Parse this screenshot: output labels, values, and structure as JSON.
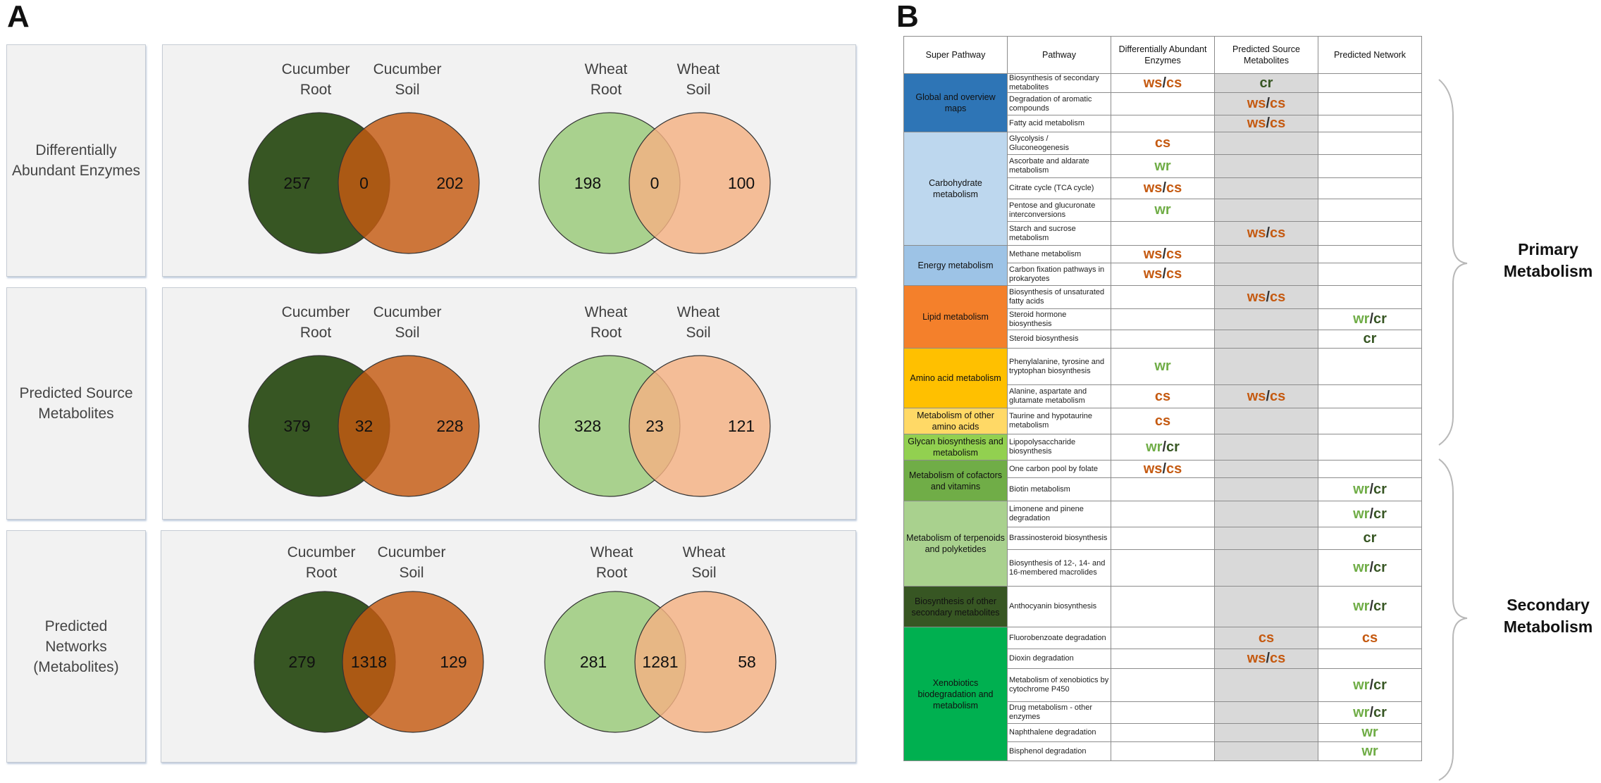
{
  "panel_a": {
    "letter": "A",
    "rows": [
      {
        "label": "Differentially\nAbundant Enzymes",
        "cucumber": {
          "left_title": [
            "Cucumber",
            "Root"
          ],
          "right_title": [
            "Cucumber",
            "Soil"
          ],
          "left": "257",
          "overlap": "0",
          "right": "202"
        },
        "wheat": {
          "left_title": [
            "Wheat",
            "Root"
          ],
          "right_title": [
            "Wheat",
            "Soil"
          ],
          "left": "198",
          "overlap": "0",
          "right": "100"
        }
      },
      {
        "label": "Predicted Source\nMetabolites",
        "cucumber": {
          "left_title": [
            "Cucumber",
            "Root"
          ],
          "right_title": [
            "Cucumber",
            "Soil"
          ],
          "left": "379",
          "overlap": "32",
          "right": "228"
        },
        "wheat": {
          "left_title": [
            "Wheat",
            "Root"
          ],
          "right_title": [
            "Wheat",
            "Soil"
          ],
          "left": "328",
          "overlap": "23",
          "right": "121"
        }
      },
      {
        "label": "Predicted\nNetworks\n(Metabolites)",
        "cucumber": {
          "left_title": [
            "Cucumber",
            "Root"
          ],
          "right_title": [
            "Cucumber",
            "Soil"
          ],
          "left": "279",
          "overlap": "1318",
          "right": "129"
        },
        "wheat": {
          "left_title": [
            "Wheat",
            "Root"
          ],
          "right_title": [
            "Wheat",
            "Soil"
          ],
          "left": "281",
          "overlap": "1281",
          "right": "58"
        }
      }
    ]
  },
  "panel_b": {
    "letter": "B",
    "headers": [
      "Super Pathway",
      "Pathway",
      "Differentially Abundant Enzymes",
      "Predicted Source Metabolites",
      "Predicted Network"
    ],
    "groups": [
      {
        "name": "Global and overview maps",
        "color": "#2e75b6",
        "rows": [
          {
            "pathway": "Biosynthesis of secondary metabolites",
            "dae": "ws/cs",
            "psm": "cr",
            "pn": ""
          },
          {
            "pathway": "Degradation of aromatic compounds",
            "dae": "",
            "psm": "ws/cs",
            "pn": ""
          },
          {
            "pathway": "Fatty acid metabolism",
            "dae": "",
            "psm": "ws/cs",
            "pn": ""
          }
        ]
      },
      {
        "name": "Carbohydrate metabolism",
        "color": "#bdd7ee",
        "rows": [
          {
            "pathway": "Glycolysis / Gluconeogenesis",
            "dae": "cs",
            "psm": "",
            "pn": ""
          },
          {
            "pathway": "Ascorbate and aldarate metabolism",
            "dae": "wr",
            "psm": "",
            "pn": ""
          },
          {
            "pathway": "Citrate cycle (TCA cycle)",
            "dae": "ws/cs",
            "psm": "",
            "pn": ""
          },
          {
            "pathway": "Pentose and glucuronate interconversions",
            "dae": "wr",
            "psm": "",
            "pn": ""
          },
          {
            "pathway": "Starch and sucrose metabolism",
            "dae": "",
            "psm": "ws/cs",
            "pn": ""
          }
        ]
      },
      {
        "name": "Energy metabolism",
        "color": "#9dc3e6",
        "rows": [
          {
            "pathway": "Methane metabolism",
            "dae": "ws/cs",
            "psm": "",
            "pn": ""
          },
          {
            "pathway": "Carbon fixation pathways in prokaryotes",
            "dae": "ws/cs",
            "psm": "",
            "pn": ""
          }
        ]
      },
      {
        "name": "Lipid metabolism",
        "color": "#f4802b",
        "rows": [
          {
            "pathway": "Biosynthesis of unsaturated fatty acids",
            "dae": "",
            "psm": "ws/cs",
            "pn": ""
          },
          {
            "pathway": "Steroid hormone biosynthesis",
            "dae": "",
            "psm": "",
            "pn": "wr/cr"
          },
          {
            "pathway": "Steroid biosynthesis",
            "dae": "",
            "psm": "",
            "pn": "cr"
          }
        ]
      },
      {
        "name": "Amino acid metabolism",
        "color": "#ffc000",
        "rows": [
          {
            "pathway": "Phenylalanine, tyrosine and tryptophan biosynthesis",
            "dae": "wr",
            "psm": "",
            "pn": ""
          },
          {
            "pathway": "Alanine, aspartate and glutamate metabolism",
            "dae": "cs",
            "psm": "ws/cs",
            "pn": ""
          }
        ]
      },
      {
        "name": "Metabolism of other amino acids",
        "color": "#ffd966",
        "rows": [
          {
            "pathway": "Taurine and hypotaurine metabolism",
            "dae": "cs",
            "psm": "",
            "pn": ""
          }
        ]
      },
      {
        "name": "Glycan biosynthesis and metabolism",
        "color": "#92d050",
        "rows": [
          {
            "pathway": "Lipopolysaccharide biosynthesis",
            "dae": "wr/cr",
            "psm": "",
            "pn": ""
          }
        ]
      },
      {
        "name": "Metabolism of cofactors and vitamins",
        "color": "#70ad47",
        "rows": [
          {
            "pathway": "One carbon pool by folate",
            "dae": "ws/cs",
            "psm": "",
            "pn": ""
          },
          {
            "pathway": "Biotin metabolism",
            "dae": "",
            "psm": "",
            "pn": "wr/cr"
          }
        ]
      },
      {
        "name": "Metabolism of terpenoids and polyketides",
        "color": "#a9d18e",
        "rows": [
          {
            "pathway": "Limonene and pinene degradation",
            "dae": "",
            "psm": "",
            "pn": "wr/cr"
          },
          {
            "pathway": "Brassinosteroid biosynthesis",
            "dae": "",
            "psm": "",
            "pn": "cr"
          },
          {
            "pathway": "Biosynthesis of 12-, 14- and 16-membered macrolides",
            "dae": "",
            "psm": "",
            "pn": "wr/cr"
          }
        ]
      },
      {
        "name": "Biosynthesis of other secondary metabolites",
        "color": "#375623",
        "rows": [
          {
            "pathway": "Anthocyanin biosynthesis",
            "dae": "",
            "psm": "",
            "pn": "wr/cr"
          }
        ]
      },
      {
        "name": "Xenobiotics biodegradation and metabolism",
        "color": "#00b050",
        "rows": [
          {
            "pathway": "Fluorobenzoate degradation",
            "dae": "",
            "psm": "cs",
            "pn": "cs"
          },
          {
            "pathway": "Dioxin degradation",
            "dae": "",
            "psm": "ws/cs",
            "pn": ""
          },
          {
            "pathway": "Metabolism of xenobiotics by cytochrome P450",
            "dae": "",
            "psm": "",
            "pn": "wr/cr"
          },
          {
            "pathway": "Drug metabolism - other enzymes",
            "dae": "",
            "psm": "",
            "pn": "wr/cr"
          },
          {
            "pathway": "Naphthalene degradation",
            "dae": "",
            "psm": "",
            "pn": "wr"
          },
          {
            "pathway": "Bisphenol degradation",
            "dae": "",
            "psm": "",
            "pn": "wr"
          }
        ]
      }
    ],
    "brackets": {
      "primary": "Primary\nMetabolism",
      "secondary": "Secondary\nMetabolism"
    }
  },
  "colors": {
    "cucumber_root": "#375623",
    "cucumber_soil": "#c55a11",
    "wheat_root": "#a9d18e",
    "wheat_soil": "#f4b183",
    "token_ws_cs": "#c55a11",
    "token_wr": "#70ad47",
    "token_cr": "#375623"
  }
}
